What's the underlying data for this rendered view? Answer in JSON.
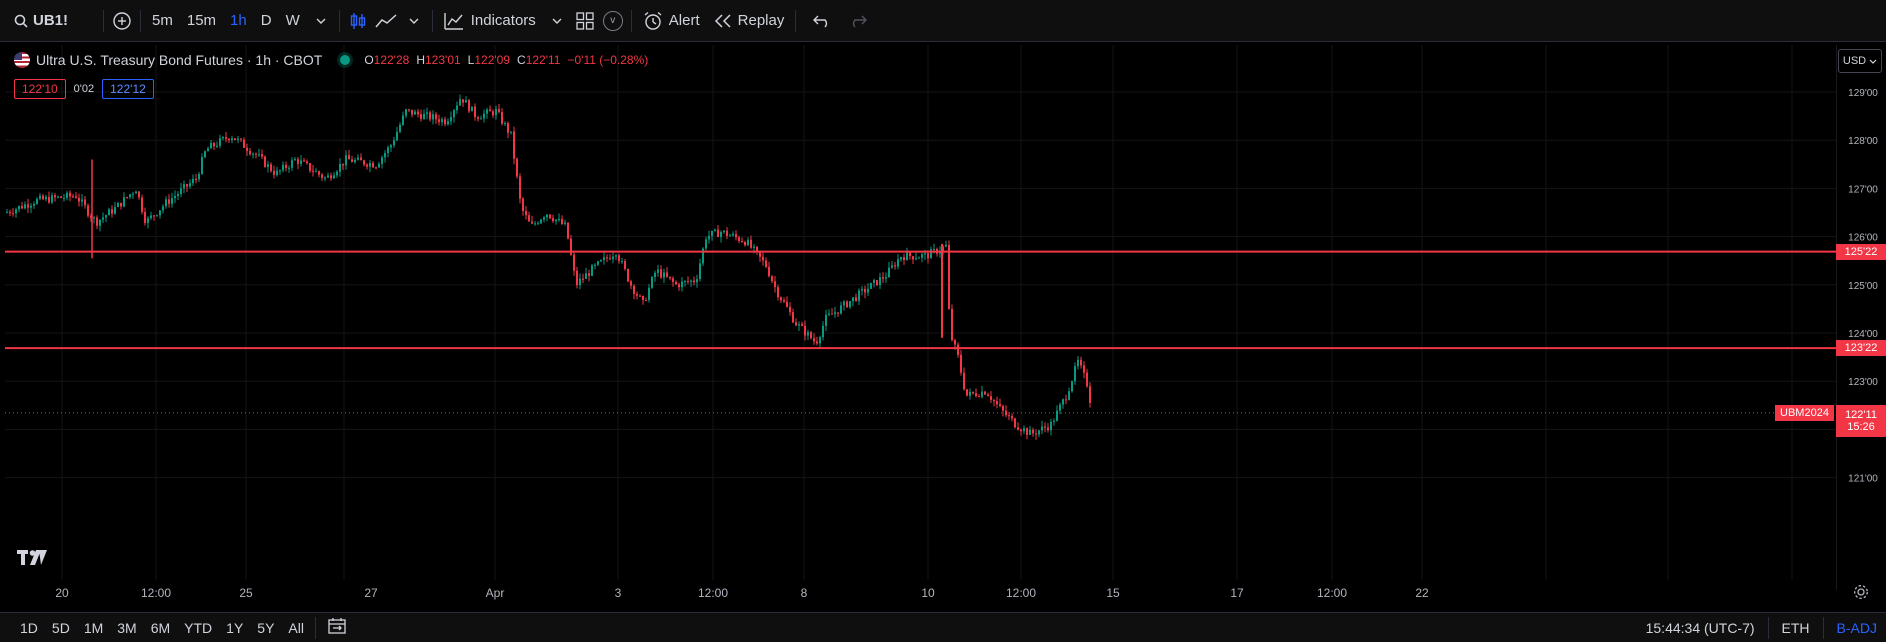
{
  "toolbar": {
    "symbol": "UB1!",
    "intervals": [
      {
        "label": "5m",
        "active": false
      },
      {
        "label": "15m",
        "active": false
      },
      {
        "label": "1h",
        "active": true
      },
      {
        "label": "D",
        "active": false
      },
      {
        "label": "W",
        "active": false
      }
    ],
    "indicators_label": "Indicators",
    "templates_icon": "v",
    "alert_label": "Alert",
    "replay_label": "Replay"
  },
  "legend": {
    "title": "Ultra U.S. Treasury Bond Futures · 1h · CBOT",
    "o_label": "O",
    "o": "122'28",
    "h_label": "H",
    "h": "123'01",
    "l_label": "L",
    "l": "122'09",
    "c_label": "C",
    "c": "122'11",
    "change": "−0'11 (−0.28%)"
  },
  "quote": {
    "sell": "122'10",
    "spread": "0'02",
    "buy": "122'12"
  },
  "currency": "USD",
  "price_axis": {
    "labels": [
      "129'00",
      "128'00",
      "127'00",
      "126'00",
      "125'00",
      "124'00",
      "123'00",
      "122'00",
      "121'00"
    ]
  },
  "levels": [
    {
      "label": "125'22",
      "price": 125.6875,
      "color": "#f23645"
    },
    {
      "label": "123'22",
      "price": 123.6875,
      "color": "#f23645"
    }
  ],
  "last_price": {
    "symbol": "UBM2024",
    "price_label": "122'11",
    "countdown": "15:26",
    "price": 122.34375
  },
  "time_axis": {
    "labels": [
      "20",
      "12:00",
      "25",
      "27",
      "Apr",
      "3",
      "12:00",
      "8",
      "10",
      "12:00",
      "15",
      "17",
      "12:00",
      "22"
    ]
  },
  "bottombar": {
    "ranges": [
      "1D",
      "5D",
      "1M",
      "3M",
      "6M",
      "YTD",
      "1Y",
      "5Y",
      "All"
    ],
    "clock": "15:44:34 (UTC-7)",
    "session": "ETH",
    "adjust": "B-ADJ"
  },
  "chart_data": {
    "type": "candlestick",
    "title": "Ultra U.S. Treasury Bond Futures · 1h · CBOT",
    "symbol": "UB1!",
    "interval": "1h",
    "ylim": [
      120.6,
      130.0
    ],
    "colors": {
      "up": "#089981",
      "down": "#f23645"
    },
    "path_points": [
      {
        "x": 0,
        "p": 126.5
      },
      {
        "x": 30,
        "p": 126.75
      },
      {
        "x": 70,
        "p": 126.85
      },
      {
        "x": 90,
        "p": 126.3
      },
      {
        "x": 110,
        "p": 126.6
      },
      {
        "x": 130,
        "p": 127.0
      },
      {
        "x": 140,
        "p": 126.3
      },
      {
        "x": 160,
        "p": 126.7
      },
      {
        "x": 190,
        "p": 127.2
      },
      {
        "x": 200,
        "p": 127.8
      },
      {
        "x": 225,
        "p": 128.1
      },
      {
        "x": 250,
        "p": 127.7
      },
      {
        "x": 270,
        "p": 127.3
      },
      {
        "x": 290,
        "p": 127.6
      },
      {
        "x": 320,
        "p": 127.2
      },
      {
        "x": 340,
        "p": 127.6
      },
      {
        "x": 370,
        "p": 127.5
      },
      {
        "x": 385,
        "p": 127.9
      },
      {
        "x": 400,
        "p": 128.6
      },
      {
        "x": 440,
        "p": 128.4
      },
      {
        "x": 455,
        "p": 128.9
      },
      {
        "x": 470,
        "p": 128.5
      },
      {
        "x": 490,
        "p": 128.6
      },
      {
        "x": 505,
        "p": 128.1
      },
      {
        "x": 515,
        "p": 126.6
      },
      {
        "x": 525,
        "p": 126.2
      },
      {
        "x": 540,
        "p": 126.5
      },
      {
        "x": 560,
        "p": 126.2
      },
      {
        "x": 570,
        "p": 125.0
      },
      {
        "x": 585,
        "p": 125.3
      },
      {
        "x": 610,
        "p": 125.7
      },
      {
        "x": 625,
        "p": 125.0
      },
      {
        "x": 637,
        "p": 124.6
      },
      {
        "x": 650,
        "p": 125.3
      },
      {
        "x": 670,
        "p": 125.0
      },
      {
        "x": 690,
        "p": 125.1
      },
      {
        "x": 700,
        "p": 126.0
      },
      {
        "x": 715,
        "p": 126.1
      },
      {
        "x": 740,
        "p": 125.9
      },
      {
        "x": 760,
        "p": 125.4
      },
      {
        "x": 770,
        "p": 124.9
      },
      {
        "x": 790,
        "p": 124.2
      },
      {
        "x": 810,
        "p": 123.8
      },
      {
        "x": 820,
        "p": 124.3
      },
      {
        "x": 840,
        "p": 124.6
      },
      {
        "x": 860,
        "p": 124.9
      },
      {
        "x": 880,
        "p": 125.2
      },
      {
        "x": 895,
        "p": 125.6
      },
      {
        "x": 920,
        "p": 125.6
      },
      {
        "x": 940,
        "p": 125.8
      },
      {
        "x": 944,
        "p": 124.0
      },
      {
        "x": 952,
        "p": 123.5
      },
      {
        "x": 960,
        "p": 122.7
      },
      {
        "x": 980,
        "p": 122.8
      },
      {
        "x": 995,
        "p": 122.4
      },
      {
        "x": 1010,
        "p": 122.1
      },
      {
        "x": 1025,
        "p": 121.9
      },
      {
        "x": 1045,
        "p": 122.1
      },
      {
        "x": 1060,
        "p": 122.7
      },
      {
        "x": 1072,
        "p": 123.4
      },
      {
        "x": 1082,
        "p": 122.9
      },
      {
        "x": 1086,
        "p": 122.34
      }
    ],
    "x_extent": 1086
  }
}
